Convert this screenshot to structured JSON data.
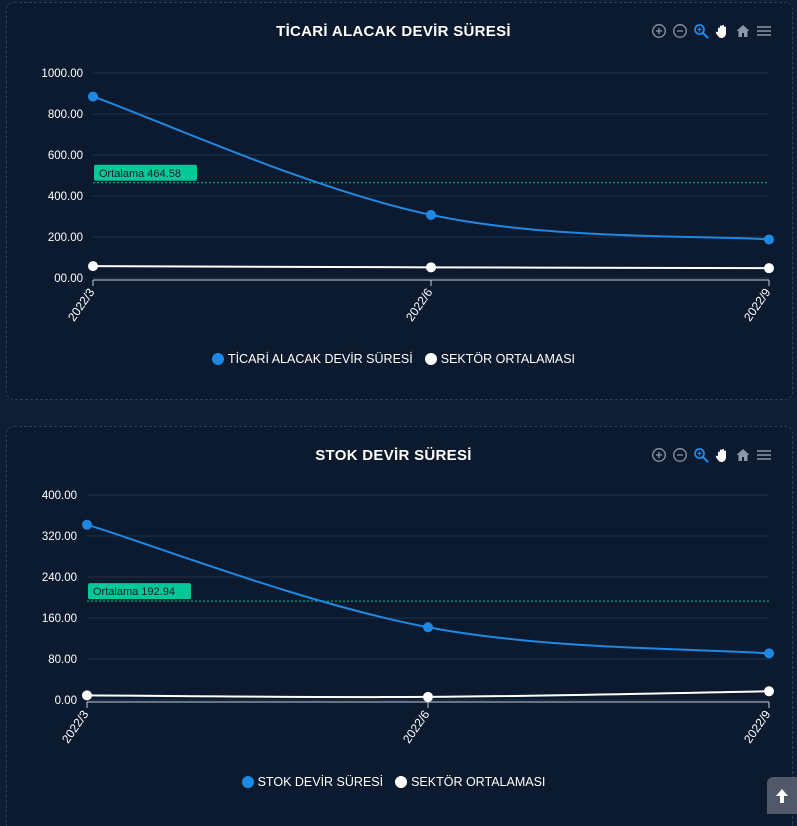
{
  "colors": {
    "series_main": "#1e88e5",
    "series_sector": "#ffffff",
    "average_line": "#00c896",
    "grid": "#22344c",
    "axis_text": "#ffffff"
  },
  "toolbar_icons": [
    "zoom-in-icon",
    "zoom-out-icon",
    "zoom-select-icon",
    "pan-hand-icon",
    "home-reset-icon",
    "menu-icon"
  ],
  "chart_data": [
    {
      "type": "line",
      "title": "TİCARİ ALACAK DEVİR SÜRESİ",
      "categories": [
        "2022/3",
        "2022/6",
        "2022/9"
      ],
      "series": [
        {
          "name": "TİCARİ ALACAK DEVİR SÜRESİ",
          "values": [
            885,
            308,
            188
          ]
        },
        {
          "name": "SEKTÖR ORTALAMASI",
          "values": [
            58,
            52,
            48
          ]
        }
      ],
      "y_ticks": [
        "1000.00",
        "800.00",
        "600.00",
        "400.00",
        "200.00",
        "00.00"
      ],
      "ylim": [
        0,
        1000
      ],
      "average": {
        "label": "Ortalama 464.58",
        "value": 464.58
      },
      "legend_position": "bottom-center",
      "grid": true
    },
    {
      "type": "line",
      "title": "STOK DEVİR SÜRESİ",
      "categories": [
        "2022/3",
        "2022/6",
        "2022/9"
      ],
      "series": [
        {
          "name": "STOK DEVİR SÜRESİ",
          "values": [
            342,
            142,
            91
          ]
        },
        {
          "name": "SEKTÖR ORTALAMASI",
          "values": [
            9,
            6,
            17
          ]
        }
      ],
      "y_ticks": [
        "400.00",
        "320.00",
        "240.00",
        "160.00",
        "80.00",
        "0.00"
      ],
      "ylim": [
        0,
        400
      ],
      "average": {
        "label": "Ortalama 192.94",
        "value": 192.94
      },
      "legend_position": "bottom-center",
      "grid": true
    }
  ]
}
